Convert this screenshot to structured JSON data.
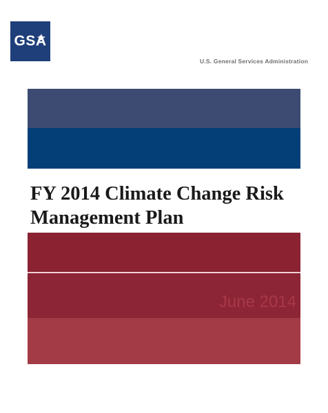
{
  "logo": {
    "text": "GSA",
    "icon": "star-icon",
    "color": "#1f3f7a"
  },
  "header": {
    "agency": "U.S. General Services Administration"
  },
  "document": {
    "title_line_1": "FY 2014 Climate Change Risk",
    "title_line_2": "Management Plan",
    "date": "June 2014"
  },
  "colors": {
    "blue_band_top": "#3d4b72",
    "blue_band_bottom": "#043f78",
    "red_band_top": "#8a2232",
    "red_band_middle": "#8c2535",
    "red_band_bottom": "#a33b46"
  }
}
